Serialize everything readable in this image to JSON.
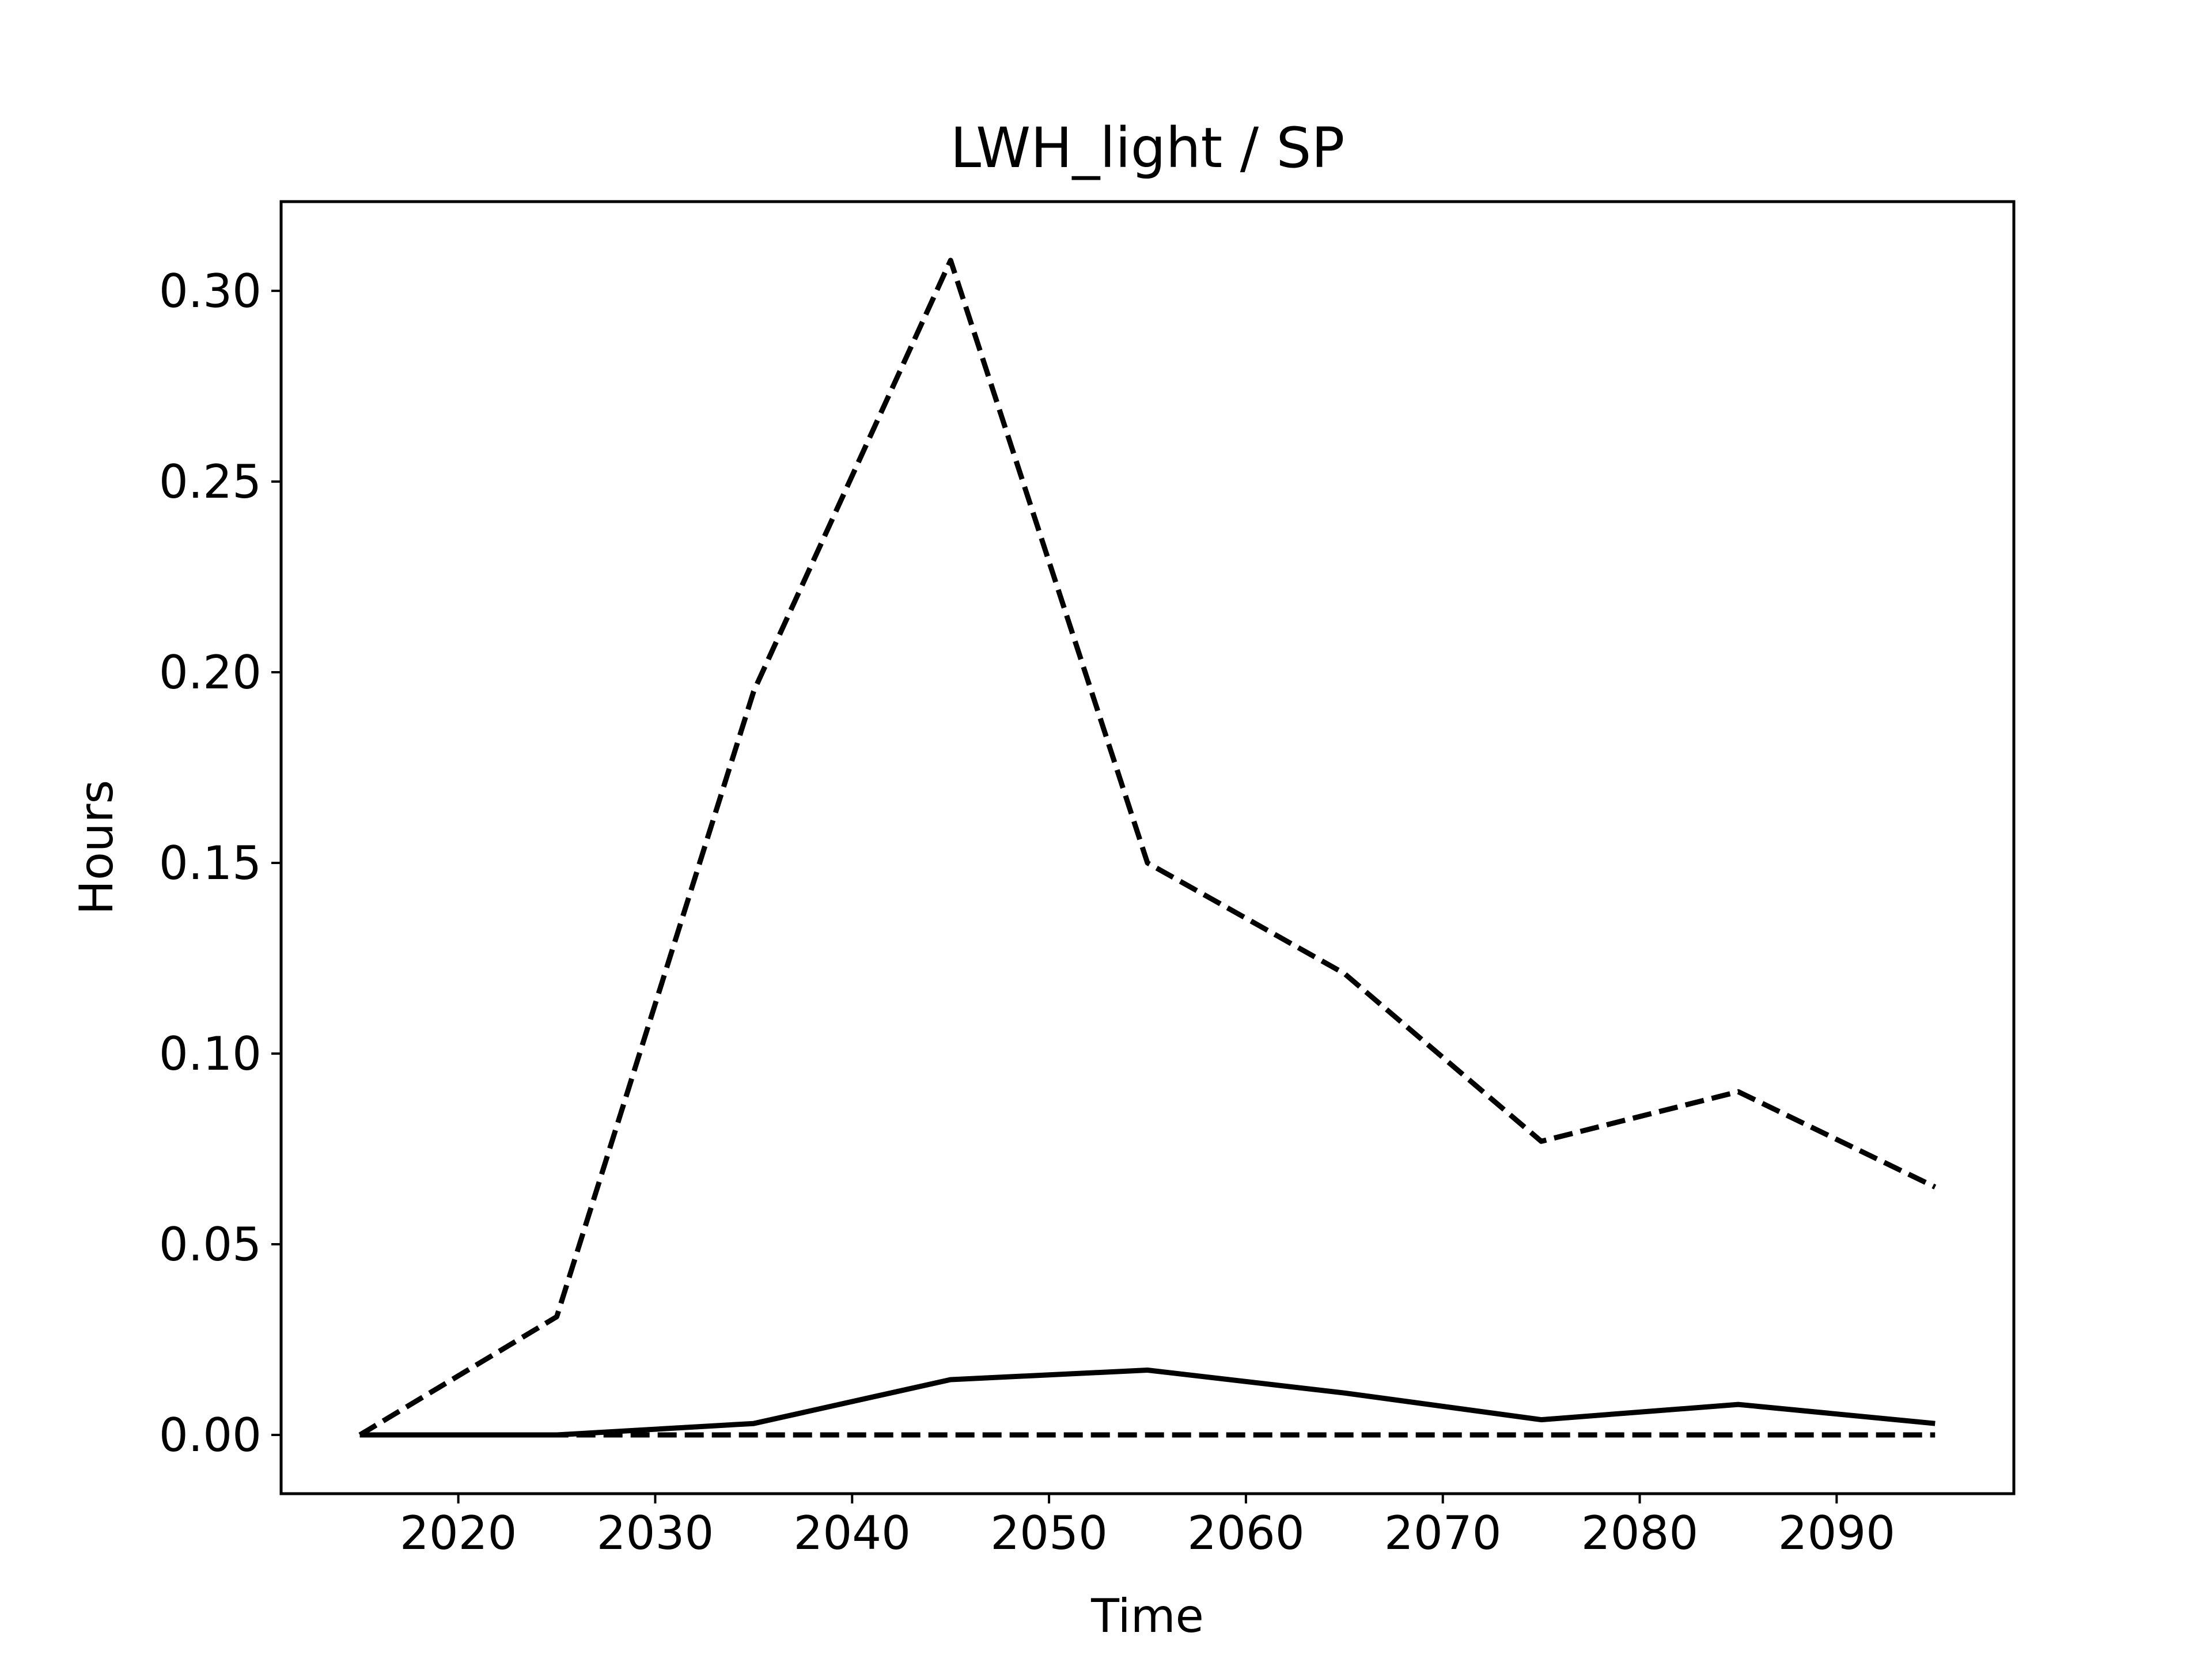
{
  "chart_data": {
    "type": "line",
    "title": "LWH_light / SP",
    "xlabel": "Time",
    "ylabel": "Hours",
    "xlim": [
      2011,
      2099
    ],
    "ylim": [
      -0.0154,
      0.3234
    ],
    "xticks": [
      2020,
      2030,
      2040,
      2050,
      2060,
      2070,
      2080,
      2090
    ],
    "xtick_labels": [
      "2020",
      "2030",
      "2040",
      "2050",
      "2060",
      "2070",
      "2080",
      "2090"
    ],
    "yticks": [
      0.0,
      0.05,
      0.1,
      0.15,
      0.2,
      0.25,
      0.3
    ],
    "ytick_labels": [
      "0.00",
      "0.05",
      "0.10",
      "0.15",
      "0.20",
      "0.25",
      "0.30"
    ],
    "grid": false,
    "x": [
      2015,
      2025,
      2035,
      2045,
      2055,
      2065,
      2075,
      2085,
      2095
    ],
    "series": [
      {
        "style": "dashed",
        "color": "#000000",
        "values": [
          0.0,
          0.031,
          0.195,
          0.308,
          0.15,
          0.121,
          0.077,
          0.09,
          0.065
        ]
      },
      {
        "style": "solid",
        "color": "#000000",
        "values": [
          0.0,
          0.0,
          0.003,
          0.0145,
          0.017,
          0.011,
          0.004,
          0.008,
          0.003
        ]
      },
      {
        "style": "dashed",
        "color": "#000000",
        "values": [
          0.0,
          0.0,
          0.0,
          0.0,
          0.0,
          0.0,
          0.0,
          0.0,
          0.0
        ]
      }
    ]
  }
}
